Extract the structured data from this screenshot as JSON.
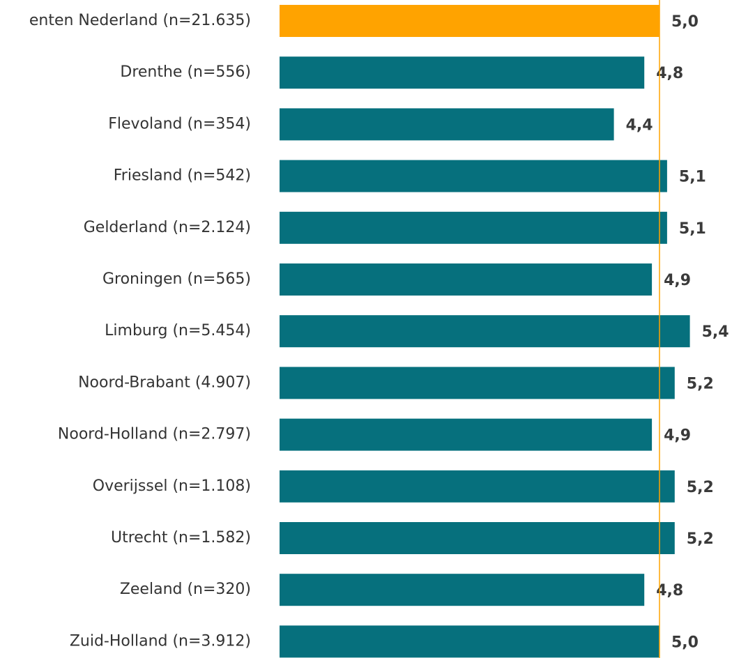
{
  "chart_data": {
    "type": "barh",
    "categories": [
      "enten Nederland (n=21.635)",
      "Drenthe (n=556)",
      "Flevoland (n=354)",
      "Friesland (n=542)",
      "Gelderland (n=2.124)",
      "Groningen (n=565)",
      "Limburg (n=5.454)",
      "Noord-Brabant (4.907)",
      "Noord-Holland (n=2.797)",
      "Overijssel (n=1.108)",
      "Utrecht (n=1.582)",
      "Zeeland (n=320)",
      "Zuid-Holland (n=3.912)"
    ],
    "values": [
      5.0,
      4.8,
      4.4,
      5.1,
      5.1,
      4.9,
      5.4,
      5.2,
      4.9,
      5.2,
      5.2,
      4.8,
      5.0
    ],
    "value_labels": [
      "5,0",
      "4,8",
      "4,4",
      "5,1",
      "5,1",
      "4,9",
      "5,4",
      "5,2",
      "4,9",
      "5,2",
      "5,2",
      "4,8",
      "5,0"
    ],
    "colors": [
      "#ffa300",
      "#06707d",
      "#06707d",
      "#06707d",
      "#06707d",
      "#06707d",
      "#06707d",
      "#06707d",
      "#06707d",
      "#06707d",
      "#06707d",
      "#06707d",
      "#06707d"
    ],
    "reference_line": {
      "value": 5.0,
      "color": "#ffa300"
    },
    "xlim": [
      0,
      6
    ]
  }
}
